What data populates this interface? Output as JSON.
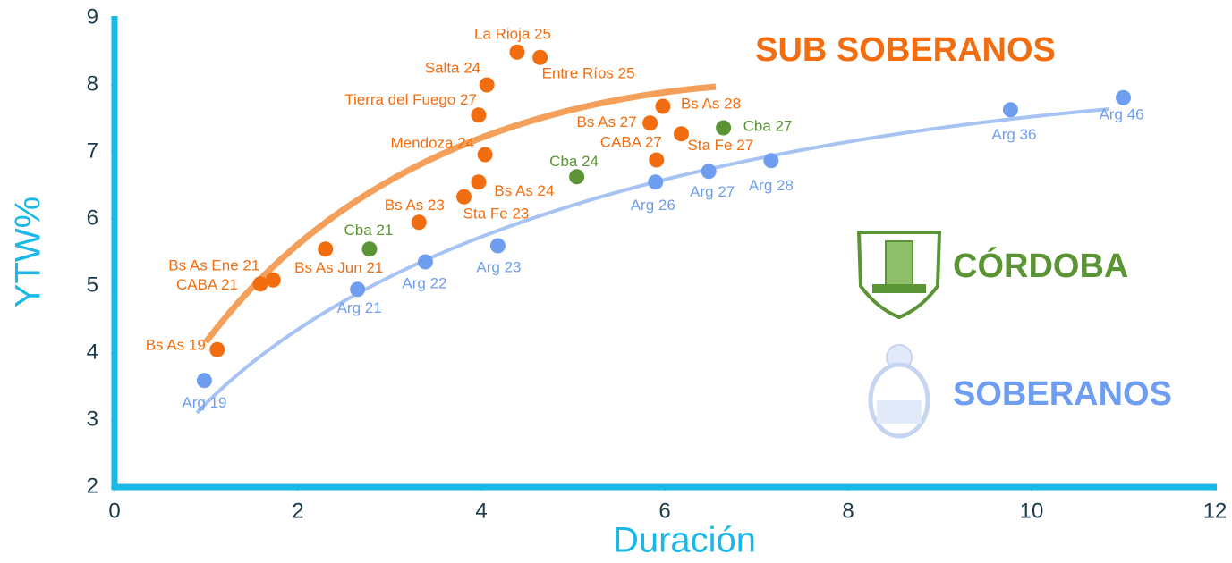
{
  "chart_data": {
    "type": "scatter",
    "xlabel": "Duración",
    "ylabel": "YTW%",
    "xlim": [
      0,
      12
    ],
    "xticks": [
      0,
      2,
      4,
      6,
      8,
      10,
      12
    ],
    "ylim": [
      2,
      9
    ],
    "yticks": [
      2,
      3,
      4,
      5,
      6,
      7,
      8,
      9
    ],
    "series": [
      {
        "name": "SUB SOBERANOS",
        "color": "#f26d0f",
        "labels": [
          "Bs As 19",
          "CABA 21",
          "Bs As Ene 21",
          "Bs As Jun 21",
          "Bs As 23",
          "Sta Fe 23",
          "Bs As 24",
          "Mendoza 24",
          "Tierra del Fuego 27",
          "Salta 24",
          "La Rioja 25",
          "Entre Ríos 25",
          "Bs As 27",
          "Bs As 28",
          "CABA 27",
          "Sta Fe 27"
        ],
        "x": [
          1.12,
          1.59,
          1.73,
          2.3,
          3.32,
          3.81,
          3.97,
          4.04,
          3.97,
          4.06,
          4.39,
          4.64,
          5.84,
          5.98,
          5.91,
          6.18
        ],
        "values": [
          4.05,
          5.03,
          5.09,
          5.55,
          5.95,
          6.33,
          6.55,
          6.96,
          7.55,
          8.0,
          8.49,
          8.41,
          7.43,
          7.68,
          6.88,
          7.27
        ]
      },
      {
        "name": "CÓRDOBA",
        "color": "#5a9434",
        "labels": [
          "Cba 21",
          "Cba 24",
          "Cba 27"
        ],
        "x": [
          2.78,
          5.04,
          6.64
        ],
        "values": [
          5.55,
          6.63,
          7.36
        ]
      },
      {
        "name": "SOBERANOS",
        "color": "#6f9ef0",
        "labels": [
          "Arg 19",
          "Arg 21",
          "Arg 22",
          "Arg 23",
          "Arg 26",
          "Arg 27",
          "Arg 28",
          "Arg 36",
          "Arg 46"
        ],
        "x": [
          0.98,
          2.65,
          3.39,
          4.18,
          5.9,
          6.48,
          7.16,
          9.77,
          11.0
        ],
        "values": [
          3.59,
          4.95,
          5.36,
          5.6,
          6.55,
          6.71,
          6.87,
          7.63,
          7.81
        ]
      }
    ]
  }
}
